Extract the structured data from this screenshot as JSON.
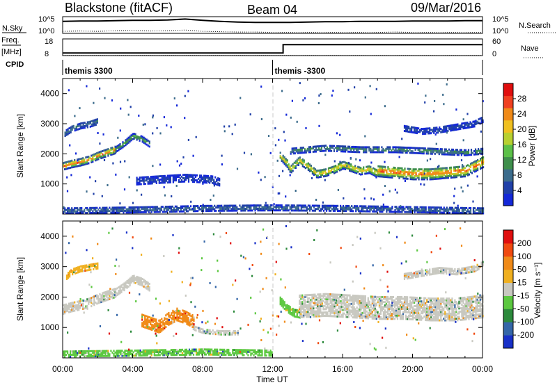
{
  "header": {
    "station": "Blackstone (fitACF)",
    "beam": "Beam 04",
    "date": "09/Mar/2016"
  },
  "chart_data": [
    {
      "type": "line",
      "name": "nsky-nsearch",
      "left_label": "N.Sky",
      "right_label": "N.Search",
      "left_ticks": [
        "10^5",
        "10^0"
      ],
      "right_ticks": [
        "10^5",
        "10^0"
      ],
      "series": [
        {
          "name": "N.Sky",
          "style": "solid",
          "x": [
            0,
            1,
            2,
            3,
            4,
            5,
            6,
            7,
            8,
            9,
            10,
            11,
            12,
            13,
            14,
            15,
            16,
            17,
            18,
            19,
            20,
            21,
            22,
            23,
            24
          ],
          "y": [
            3.6,
            3.7,
            3.7,
            3.8,
            3.9,
            3.9,
            4.0,
            4.3,
            3.9,
            3.6,
            3.4,
            3.3,
            3.3,
            3.3,
            3.4,
            3.5,
            3.5,
            3.6,
            3.6,
            3.6,
            3.7,
            3.7,
            3.7,
            3.8,
            3.8
          ]
        },
        {
          "name": "N.Search",
          "style": "dotted",
          "x": [
            0,
            1,
            2,
            3,
            4,
            5,
            6,
            7,
            8,
            9,
            10,
            11,
            12,
            13,
            14,
            15,
            16,
            17,
            18,
            19,
            20,
            21,
            22,
            23,
            24
          ],
          "y": [
            0.6,
            0.7,
            0.6,
            0.8,
            0.9,
            0.7,
            0.8,
            1.0,
            0.6,
            0.5,
            0.4,
            0.4,
            0.3,
            0.3,
            0.3,
            0.3,
            0.3,
            0.3,
            0.3,
            0.4,
            0.3,
            0.3,
            0.3,
            0.3,
            0.3
          ]
        }
      ]
    },
    {
      "type": "line",
      "name": "freq-nave",
      "left_label_top": "Freq.",
      "left_label_bottom": "[MHz]",
      "right_label": "Nave",
      "left_ticks": [
        "18",
        "8"
      ],
      "right_ticks": [
        "60",
        "0"
      ],
      "series": [
        {
          "name": "Freq.",
          "style": "solid",
          "x": [
            0,
            12.6,
            12.6,
            24
          ],
          "y": [
            8.7,
            8.7,
            14.2,
            14.2
          ]
        },
        {
          "name": "Nave",
          "style": "dotted",
          "x": [
            0,
            24
          ],
          "y": [
            0.6,
            0.6
          ]
        }
      ]
    },
    {
      "type": "table",
      "name": "cpid",
      "label": "CPID",
      "segments": [
        {
          "start": 0,
          "end": 12.0,
          "text": "themis 3300"
        },
        {
          "start": 12.0,
          "end": 24,
          "text": "themis -3300"
        }
      ]
    },
    {
      "type": "heatmap",
      "name": "power",
      "ylabel": "Slant Range [km]",
      "xlim": [
        0,
        24
      ],
      "ylim": [
        0,
        4500
      ],
      "yticks": [
        "1000",
        "2000",
        "3000",
        "4000"
      ],
      "colorbar_label": "Power [dB]",
      "colorbar_ticks": [
        "4",
        "8",
        "12",
        "16",
        "20",
        "24",
        "28"
      ],
      "colors": [
        "#1428d8",
        "#2040a8",
        "#3c6c8c",
        "#3f8f4c",
        "#5cc048",
        "#b8d030",
        "#f0c020",
        "#f08a18",
        "#f04020",
        "#e00e0e"
      ],
      "features": [
        {
          "kind": "band",
          "x": [
            0.0,
            0.5,
            1.0,
            1.5,
            2.0,
            2.5,
            3.0
          ],
          "y": [
            1600,
            1680,
            1740,
            1820,
            1950,
            2050,
            2150
          ],
          "width": 240,
          "level": 0.85
        },
        {
          "kind": "band",
          "x": [
            3.0,
            3.5,
            4.0,
            4.5,
            5.0
          ],
          "y": [
            2150,
            2350,
            2600,
            2500,
            2300
          ],
          "width": 170,
          "level": 0.45
        },
        {
          "kind": "band",
          "x": [
            0.1,
            0.5,
            1.0,
            1.5,
            2.0
          ],
          "y": [
            2700,
            2850,
            2950,
            3000,
            3100
          ],
          "width": 200,
          "level": 0.25
        },
        {
          "kind": "band",
          "x": [
            4.2,
            5.5,
            7.0,
            8.5,
            9.0
          ],
          "y": [
            1100,
            1150,
            1200,
            1150,
            1050
          ],
          "width": 220,
          "level": 0.12
        },
        {
          "kind": "band",
          "x": [
            12.4,
            12.8,
            13.0,
            13.5,
            14.0,
            14.5,
            15.0
          ],
          "y": [
            1950,
            1700,
            1500,
            1800,
            1600,
            1350,
            1400
          ],
          "width": 260,
          "level": 0.7
        },
        {
          "kind": "band",
          "x": [
            15.0,
            15.5,
            16.0,
            16.5,
            17.0,
            17.5,
            18.0
          ],
          "y": [
            1400,
            1500,
            1650,
            1550,
            1450,
            1500,
            1350
          ],
          "width": 260,
          "level": 0.75
        },
        {
          "kind": "band",
          "x": [
            18.0,
            19.0,
            20.0,
            21.0,
            22.0,
            23.0,
            23.5,
            24.0
          ],
          "y": [
            1450,
            1400,
            1350,
            1350,
            1400,
            1450,
            1600,
            1750
          ],
          "width": 380,
          "level": 0.9
        },
        {
          "kind": "band",
          "x": [
            13.0,
            15.0,
            17.0,
            19.0,
            21.0,
            23.0,
            24.0
          ],
          "y": [
            2100,
            2200,
            2150,
            2150,
            2100,
            2050,
            2100
          ],
          "width": 180,
          "level": 0.35
        },
        {
          "kind": "band",
          "x": [
            19.5,
            20.5,
            21.5,
            22.5,
            23.5,
            24.0
          ],
          "y": [
            2850,
            2750,
            2800,
            2900,
            3000,
            3150
          ],
          "width": 170,
          "level": 0.15
        },
        {
          "kind": "band",
          "x": [
            0.0,
            4.0,
            8.0,
            12.0,
            16.0,
            20.0,
            24.0
          ],
          "y": [
            120,
            150,
            200,
            220,
            200,
            160,
            120
          ],
          "width": 180,
          "level": 0.25
        }
      ]
    },
    {
      "type": "heatmap",
      "name": "velocity",
      "ylabel": "Slant Range [km]",
      "xlabel": "Time UT",
      "xlim": [
        0,
        24
      ],
      "ylim": [
        0,
        4500
      ],
      "xticks": [
        "00:00",
        "04:00",
        "08:00",
        "12:00",
        "16:00",
        "20:00",
        "00:00"
      ],
      "yticks": [
        "1000",
        "2000",
        "3000",
        "4000"
      ],
      "colorbar_label": "Velocity [m s⁻¹]",
      "colorbar_ticks": [
        "200",
        "100",
        "50",
        "15",
        "-15",
        "-50",
        "-100",
        "-200"
      ],
      "colors": [
        "#1830c8",
        "#3466a8",
        "#2c8a3c",
        "#5cc840",
        "#c8c8c0",
        "#f0b020",
        "#f08a18",
        "#f04a10",
        "#e00e0e"
      ],
      "features": [
        {
          "kind": "band",
          "x": [
            0.0,
            0.5,
            1.0,
            1.5,
            2.0,
            2.5,
            3.0
          ],
          "y": [
            1600,
            1680,
            1740,
            1820,
            1950,
            2050,
            2150
          ],
          "width": 280,
          "level": 4
        },
        {
          "kind": "band",
          "x": [
            3.0,
            3.5,
            4.0,
            4.5,
            5.0
          ],
          "y": [
            2150,
            2350,
            2600,
            2500,
            2300
          ],
          "width": 220,
          "level": 4
        },
        {
          "kind": "band",
          "x": [
            0.2,
            0.5,
            1.0,
            1.5,
            2.0
          ],
          "y": [
            2700,
            2850,
            2950,
            3000,
            3050
          ],
          "width": 200,
          "level": 5
        },
        {
          "kind": "band",
          "x": [
            4.5,
            5.5,
            6.0,
            6.5,
            7.0,
            7.5
          ],
          "y": [
            1250,
            1050,
            1300,
            1450,
            1350,
            1200
          ],
          "width": 420,
          "level": 6
        },
        {
          "kind": "band",
          "x": [
            7.5,
            8.0,
            9.0,
            10.0
          ],
          "y": [
            1000,
            900,
            850,
            850
          ],
          "width": 150,
          "level": 4
        },
        {
          "kind": "band",
          "x": [
            12.4,
            12.8,
            13.2,
            13.6
          ],
          "y": [
            1900,
            1650,
            1500,
            1450
          ],
          "width": 260,
          "level": 3
        },
        {
          "kind": "band",
          "x": [
            13.5,
            15.0,
            16.5,
            18.0,
            19.5,
            21.0,
            22.5,
            24.0
          ],
          "y": [
            1700,
            1750,
            1700,
            1650,
            1650,
            1600,
            1600,
            1700
          ],
          "width": 720,
          "level": 4
        },
        {
          "kind": "band",
          "x": [
            19.5,
            20.5,
            21.5,
            22.5,
            23.5,
            24.0
          ],
          "y": [
            2700,
            2800,
            2900,
            2850,
            2950,
            3100
          ],
          "width": 200,
          "level": 4
        },
        {
          "kind": "band",
          "x": [
            0.0,
            4.0,
            8.0,
            12.0
          ],
          "y": [
            150,
            180,
            220,
            180
          ],
          "width": 200,
          "level": 3
        }
      ]
    }
  ]
}
